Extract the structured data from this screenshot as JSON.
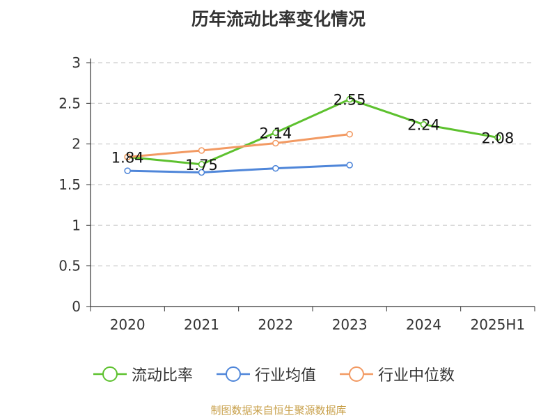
{
  "chart_data": {
    "type": "line",
    "title": "历年流动比率变化情况",
    "categories": [
      "2020",
      "2021",
      "2022",
      "2023",
      "2024",
      "2025H1"
    ],
    "ylim": [
      0,
      3
    ],
    "yticks": [
      0,
      0.5,
      1,
      1.5,
      2,
      2.5,
      3
    ],
    "ytick_labels": [
      "0",
      "0.5",
      "1",
      "1.5",
      "2",
      "2.5",
      "3"
    ],
    "grid": true,
    "legend_position": "bottom",
    "series": [
      {
        "name": "流动比率",
        "color": "#5dc12e",
        "values": [
          1.84,
          1.75,
          2.14,
          2.55,
          2.24,
          2.08
        ],
        "labels": [
          "1.84",
          "1.75",
          "2.14",
          "2.55",
          "2.24",
          "2.08"
        ],
        "show_labels": true
      },
      {
        "name": "行业均值",
        "color": "#4f86d9",
        "values": [
          1.67,
          1.65,
          1.7,
          1.74,
          null,
          null
        ],
        "labels": [],
        "show_labels": false
      },
      {
        "name": "行业中位数",
        "color": "#f29a63",
        "values": [
          1.84,
          1.92,
          2.01,
          2.12,
          null,
          null
        ],
        "labels": [],
        "show_labels": false
      }
    ]
  },
  "footer": "制图数据来自恒生聚源数据库"
}
